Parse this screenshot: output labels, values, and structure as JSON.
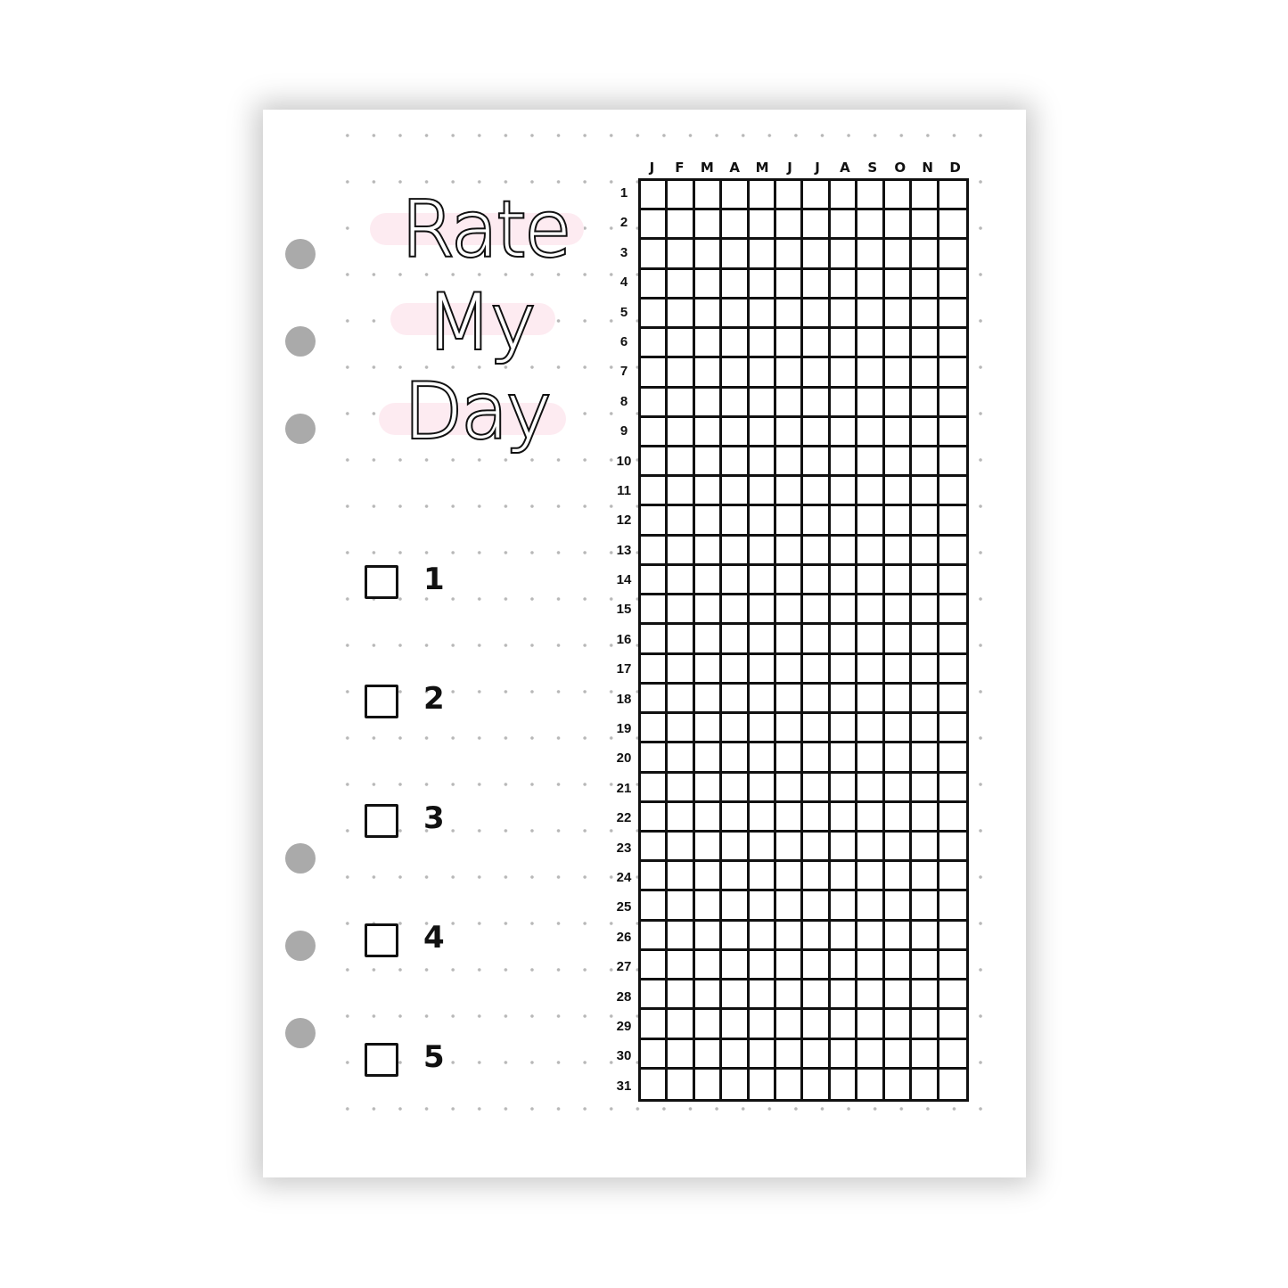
{
  "title": {
    "lines": [
      "Rate",
      "My",
      "Day"
    ],
    "highlight_color": "#fdebf1"
  },
  "ratings": [
    "1",
    "2",
    "3",
    "4",
    "5"
  ],
  "tracker": {
    "months": [
      "J",
      "F",
      "M",
      "A",
      "M",
      "J",
      "J",
      "A",
      "S",
      "O",
      "N",
      "D"
    ],
    "days": [
      "1",
      "2",
      "3",
      "4",
      "5",
      "6",
      "7",
      "8",
      "9",
      "10",
      "11",
      "12",
      "13",
      "14",
      "15",
      "16",
      "17",
      "18",
      "19",
      "20",
      "21",
      "22",
      "23",
      "24",
      "25",
      "26",
      "27",
      "28",
      "29",
      "30",
      "31"
    ],
    "filled_cells": 0
  },
  "colors": {
    "ink": "#111111",
    "dots": "#b8b8b8",
    "binder_holes": "#aaaaaa"
  }
}
